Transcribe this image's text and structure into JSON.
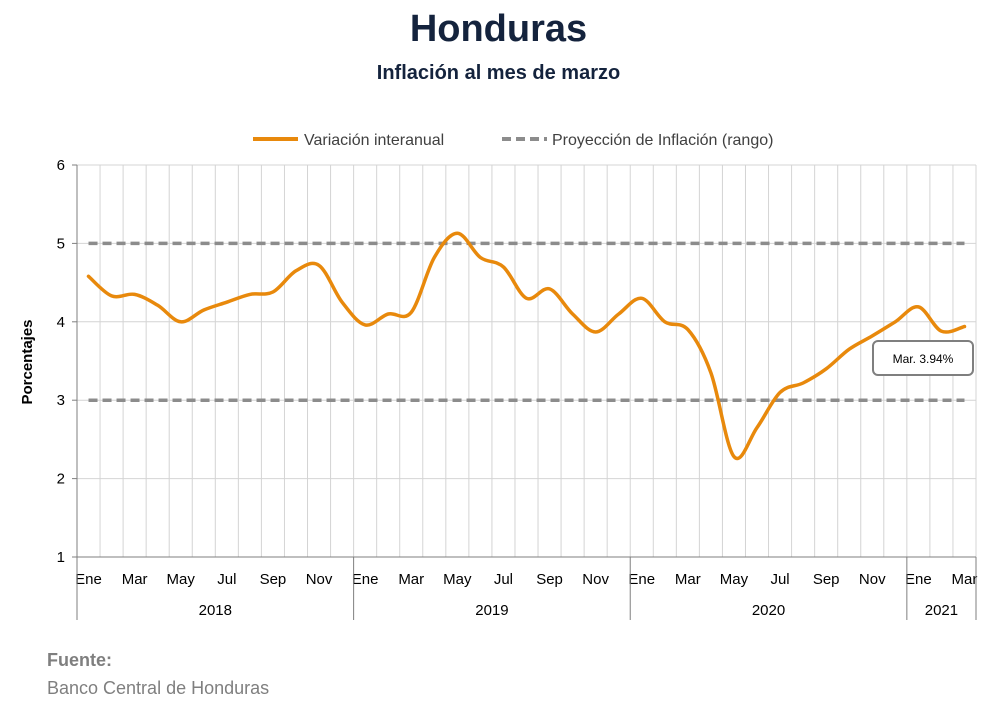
{
  "header": {
    "title": "Honduras",
    "subtitle": "Inflación al mes de marzo"
  },
  "source": {
    "label": "Fuente:",
    "text": "Banco Central de Honduras"
  },
  "colors": {
    "series": "#e8890c",
    "projection": "#8c8c8c",
    "grid": "#d4d4d4",
    "title": "#14233d"
  },
  "chart_data": {
    "type": "line",
    "title": "Honduras",
    "subtitle": "Inflación al mes de marzo",
    "ylabel": "Porcentajes",
    "xlabel": "",
    "ylim": [
      1,
      6
    ],
    "yticks": [
      1,
      2,
      3,
      4,
      5,
      6
    ],
    "grid": true,
    "legend_position": "top",
    "x": [
      "2018-01",
      "2018-02",
      "2018-03",
      "2018-04",
      "2018-05",
      "2018-06",
      "2018-07",
      "2018-08",
      "2018-09",
      "2018-10",
      "2018-11",
      "2018-12",
      "2019-01",
      "2019-02",
      "2019-03",
      "2019-04",
      "2019-05",
      "2019-06",
      "2019-07",
      "2019-08",
      "2019-09",
      "2019-10",
      "2019-11",
      "2019-12",
      "2020-01",
      "2020-02",
      "2020-03",
      "2020-04",
      "2020-05",
      "2020-06",
      "2020-07",
      "2020-08",
      "2020-09",
      "2020-10",
      "2020-11",
      "2020-12",
      "2021-01",
      "2021-02",
      "2021-03"
    ],
    "month_labels": [
      "Ene",
      "",
      "Mar",
      "",
      "May",
      "",
      "Jul",
      "",
      "Sep",
      "",
      "Nov",
      "",
      "Ene",
      "",
      "Mar",
      "",
      "May",
      "",
      "Jul",
      "",
      "Sep",
      "",
      "Nov",
      "",
      "Ene",
      "",
      "Mar",
      "",
      "May",
      "",
      "Jul",
      "",
      "Sep",
      "",
      "Nov",
      "",
      "Ene",
      "",
      "Mar"
    ],
    "year_groups": [
      {
        "label": "2018",
        "start": 0,
        "end": 11
      },
      {
        "label": "2019",
        "start": 12,
        "end": 23
      },
      {
        "label": "2020",
        "start": 24,
        "end": 35
      },
      {
        "label": "2021",
        "start": 36,
        "end": 38
      }
    ],
    "series": [
      {
        "name": "Variación interanual",
        "style": "solid",
        "color": "#e8890c",
        "values": [
          4.58,
          4.33,
          4.35,
          4.21,
          4.0,
          4.15,
          4.25,
          4.35,
          4.38,
          4.65,
          4.72,
          4.25,
          3.96,
          4.1,
          4.12,
          4.82,
          5.13,
          4.82,
          4.7,
          4.3,
          4.42,
          4.1,
          3.87,
          4.1,
          4.3,
          4.0,
          3.9,
          3.35,
          2.28,
          2.65,
          3.1,
          3.22,
          3.4,
          3.65,
          3.82,
          4.0,
          4.19,
          3.88,
          3.94
        ]
      },
      {
        "name": "Proyección de Inflación (rango)",
        "style": "dashed",
        "color": "#8c8c8c",
        "lower": 3,
        "upper": 5
      }
    ],
    "annotations": [
      {
        "text": "Mar. 3.94%",
        "index": 38,
        "value": 3.94
      }
    ]
  }
}
